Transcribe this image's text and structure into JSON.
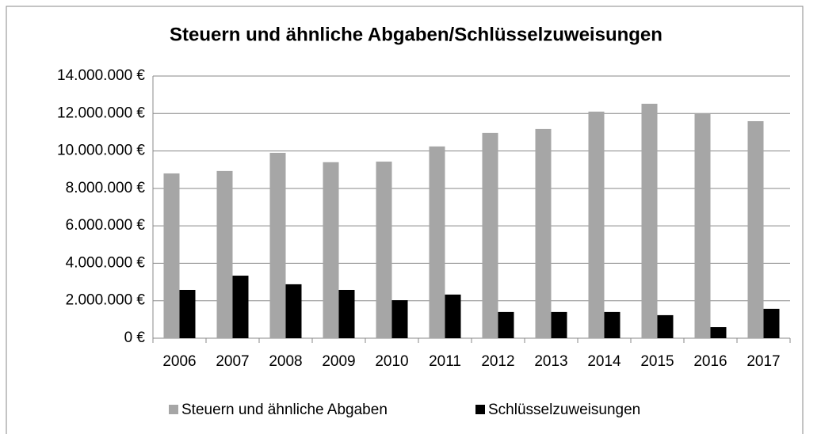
{
  "chart_data": {
    "type": "bar",
    "title": "Steuern und ähnliche Abgaben/Schlüsselzuweisungen",
    "categories": [
      "2006",
      "2007",
      "2008",
      "2009",
      "2010",
      "2011",
      "2012",
      "2013",
      "2014",
      "2015",
      "2016",
      "2017"
    ],
    "series": [
      {
        "name": "Steuern und ähnliche Abgaben",
        "color": "#a6a6a6",
        "values": [
          8800000,
          8930000,
          9900000,
          9400000,
          9430000,
          10240000,
          10960000,
          11170000,
          12100000,
          12520000,
          11970000,
          11590000
        ]
      },
      {
        "name": "Schlüsselzuweisungen",
        "color": "#000000",
        "values": [
          2580000,
          3340000,
          2880000,
          2580000,
          2030000,
          2330000,
          1400000,
          1400000,
          1400000,
          1230000,
          590000,
          1570000
        ]
      }
    ],
    "ylim": [
      0,
      14000000
    ],
    "yticks": [
      {
        "value": 0,
        "label": "0 €"
      },
      {
        "value": 2000000,
        "label": "2.000.000 €"
      },
      {
        "value": 4000000,
        "label": "4.000.000 €"
      },
      {
        "value": 6000000,
        "label": "6.000.000 €"
      },
      {
        "value": 8000000,
        "label": "8.000.000 €"
      },
      {
        "value": 10000000,
        "label": "10.000.000 €"
      },
      {
        "value": 12000000,
        "label": "12.000.000 €"
      },
      {
        "value": 14000000,
        "label": "14.000.000 €"
      }
    ],
    "grid": true,
    "legend": "bottom"
  }
}
